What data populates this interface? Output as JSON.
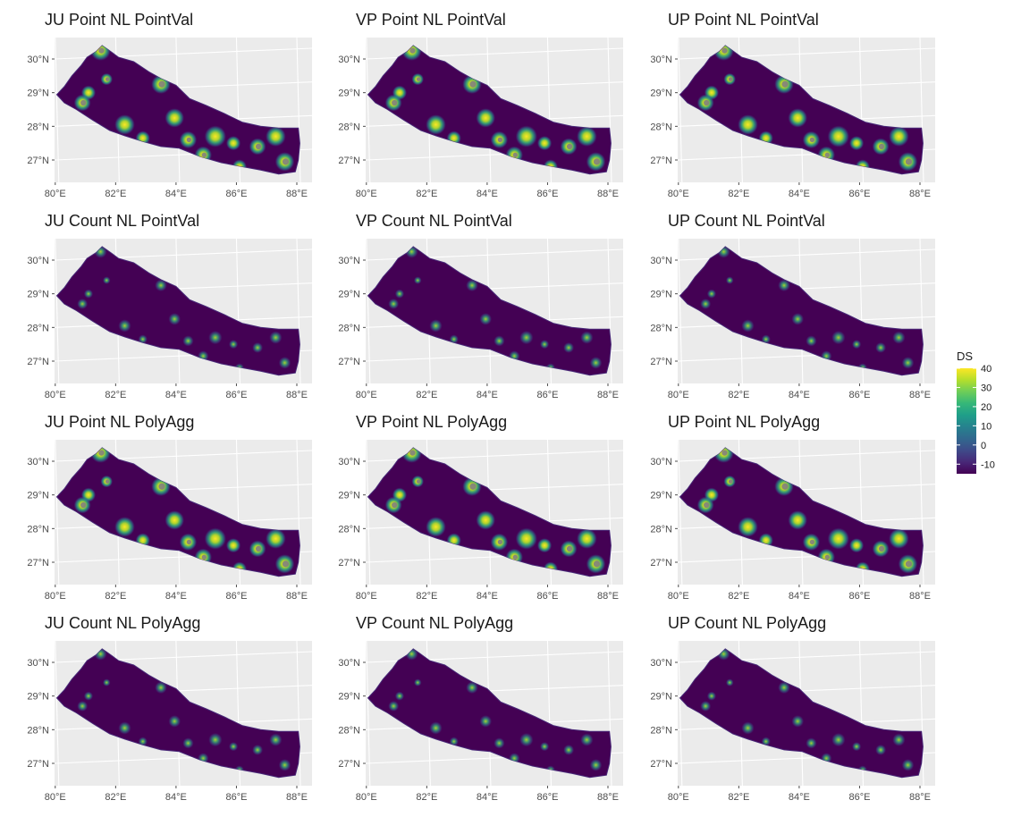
{
  "colors": {
    "panel_background": "#ebebeb",
    "grid_line": "#ffffff",
    "na_value": "#7f7f7f",
    "viridis": [
      "#440154",
      "#482878",
      "#3e4a89",
      "#31688e",
      "#26828e",
      "#1f9e89",
      "#35b779",
      "#6dcd59",
      "#b4de2c",
      "#fde725"
    ]
  },
  "axes": {
    "x_ticks": [
      "80°E",
      "82°E",
      "84°E",
      "86°E",
      "88°E"
    ],
    "y_ticks": [
      "30°N",
      "29°N",
      "28°N",
      "27°N"
    ]
  },
  "panels": [
    {
      "title": "JU Point NL PointVal"
    },
    {
      "title": "VP Point NL PointVal"
    },
    {
      "title": "UP Point NL PointVal"
    },
    {
      "title": "JU Count NL PointVal"
    },
    {
      "title": "VP Count NL PointVal"
    },
    {
      "title": "UP Count NL PointVal"
    },
    {
      "title": "JU Point NL PolyAgg"
    },
    {
      "title": "VP Point NL PolyAgg"
    },
    {
      "title": "UP Point NL PolyAgg"
    },
    {
      "title": "JU Count NL PolyAgg"
    },
    {
      "title": "VP Count NL PolyAgg"
    },
    {
      "title": "UP Count NL PolyAgg"
    }
  ],
  "legend": {
    "title": "DS",
    "min": -15,
    "max": 40,
    "labels": [
      "40",
      "30",
      "20",
      "10",
      "0",
      "-10"
    ]
  }
}
